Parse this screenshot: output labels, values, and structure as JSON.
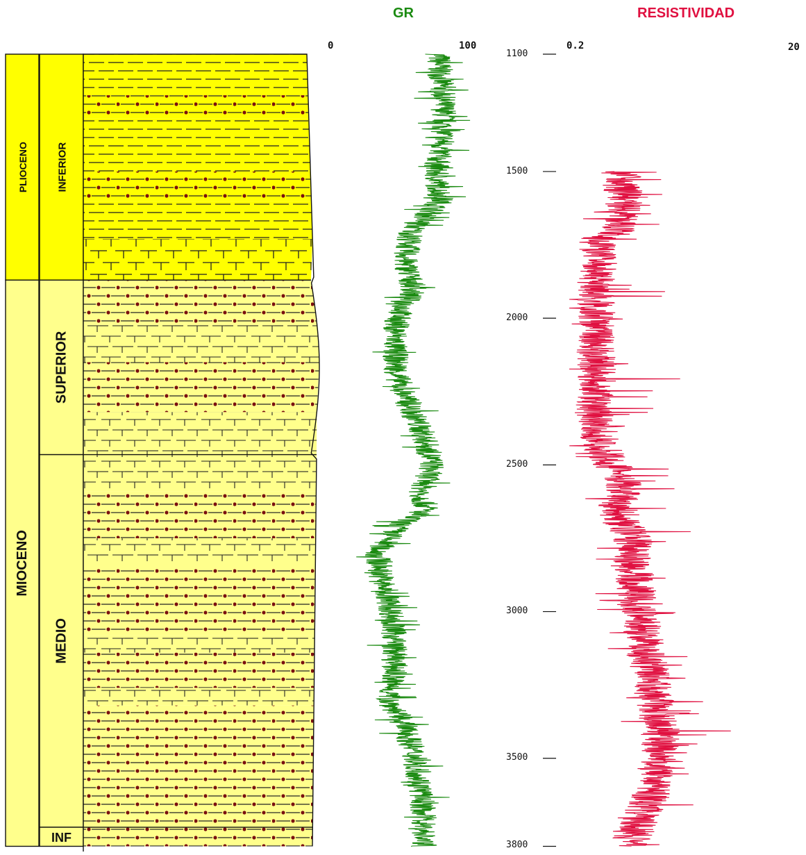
{
  "column": {
    "epochs": [
      {
        "name": "PLIOCENO",
        "top": 1100,
        "base": 1870
      },
      {
        "name": "MIOCENO",
        "top": 1870,
        "base": 3800
      }
    ],
    "subepochs": [
      {
        "name": "INFERIOR",
        "top": 1100,
        "base": 1870
      },
      {
        "name": "SUPERIOR",
        "top": 1870,
        "base": 2465
      },
      {
        "name": "MEDIO",
        "top": 2465,
        "base": 3735
      },
      {
        "name": "INF",
        "top": 3735,
        "base": 3800
      }
    ],
    "lithology": [
      {
        "top": 1100,
        "base": 1240,
        "pattern": "shale"
      },
      {
        "top": 1240,
        "base": 1320,
        "pattern": "sandy-shale"
      },
      {
        "top": 1320,
        "base": 1500,
        "pattern": "shale"
      },
      {
        "top": 1500,
        "base": 1600,
        "pattern": "sandy-shale"
      },
      {
        "top": 1600,
        "base": 1730,
        "pattern": "shale"
      },
      {
        "top": 1730,
        "base": 1870,
        "pattern": "marl"
      },
      {
        "top": 1870,
        "base": 2020,
        "pattern": "sandy-shale"
      },
      {
        "top": 2020,
        "base": 2150,
        "pattern": "marly-shale"
      },
      {
        "top": 2150,
        "base": 2320,
        "pattern": "sandy-shale"
      },
      {
        "top": 2320,
        "base": 2465,
        "pattern": "marly-shale"
      },
      {
        "top": 2465,
        "base": 2590,
        "pattern": "marly-shale"
      },
      {
        "top": 2590,
        "base": 2750,
        "pattern": "sandy-shale"
      },
      {
        "top": 2750,
        "base": 2840,
        "pattern": "marly-shale"
      },
      {
        "top": 2840,
        "base": 3080,
        "pattern": "sandy-shale"
      },
      {
        "top": 3080,
        "base": 3140,
        "pattern": "marly-shale"
      },
      {
        "top": 3140,
        "base": 3260,
        "pattern": "sandy-shale"
      },
      {
        "top": 3260,
        "base": 3320,
        "pattern": "marly-shale"
      },
      {
        "top": 3320,
        "base": 3800,
        "pattern": "sandy-shale"
      }
    ],
    "colors": {
      "lower_column": "#ffff00",
      "upper_column": "#ffff8c",
      "grain_dot": "#7a1010"
    }
  },
  "chart_data": {
    "type": "line",
    "depth_ticks": [
      1100,
      1500,
      2000,
      2500,
      3000,
      3500,
      3800
    ],
    "y_range": [
      1100,
      3800
    ],
    "series": [
      {
        "name": "GR",
        "color": "#1a8a10",
        "scale": "linear",
        "xlim": [
          0,
          100
        ],
        "scale_labels": [
          "0",
          "100"
        ],
        "profile": [
          [
            1100,
            74
          ],
          [
            1200,
            76
          ],
          [
            1300,
            78
          ],
          [
            1400,
            77
          ],
          [
            1500,
            72
          ],
          [
            1600,
            76
          ],
          [
            1700,
            56
          ],
          [
            1800,
            51
          ],
          [
            1900,
            57
          ],
          [
            2000,
            46
          ],
          [
            2100,
            44
          ],
          [
            2200,
            46
          ],
          [
            2300,
            54
          ],
          [
            2400,
            64
          ],
          [
            2500,
            70
          ],
          [
            2550,
            66
          ],
          [
            2600,
            62
          ],
          [
            2650,
            66
          ],
          [
            2700,
            48
          ],
          [
            2730,
            43
          ],
          [
            2800,
            32
          ],
          [
            2900,
            36
          ],
          [
            3000,
            42
          ],
          [
            3100,
            44
          ],
          [
            3200,
            44
          ],
          [
            3300,
            40
          ],
          [
            3400,
            52
          ],
          [
            3500,
            58
          ],
          [
            3600,
            62
          ],
          [
            3700,
            64
          ],
          [
            3800,
            64
          ]
        ],
        "noise": 9
      },
      {
        "name": "RESISTIVIDAD",
        "color": "#e01040",
        "scale": "log",
        "xlim": [
          0.2,
          20
        ],
        "scale_labels": [
          "0.2",
          "20"
        ],
        "profile": [
          [
            1500,
            0.55
          ],
          [
            1550,
            0.58
          ],
          [
            1600,
            0.62
          ],
          [
            1700,
            0.55
          ],
          [
            1730,
            0.35
          ],
          [
            1800,
            0.36
          ],
          [
            1900,
            0.34
          ],
          [
            2000,
            0.35
          ],
          [
            2100,
            0.34
          ],
          [
            2200,
            0.35
          ],
          [
            2300,
            0.33
          ],
          [
            2400,
            0.36
          ],
          [
            2450,
            0.4
          ],
          [
            2500,
            0.48
          ],
          [
            2540,
            0.52
          ],
          [
            2580,
            0.62
          ],
          [
            2640,
            0.52
          ],
          [
            2700,
            0.58
          ],
          [
            2750,
            0.72
          ],
          [
            2800,
            0.7
          ],
          [
            2900,
            0.76
          ],
          [
            3000,
            0.82
          ],
          [
            3100,
            0.9
          ],
          [
            3200,
            1.0
          ],
          [
            3300,
            1.1
          ],
          [
            3400,
            1.25
          ],
          [
            3500,
            1.2
          ],
          [
            3600,
            1.1
          ],
          [
            3700,
            0.85
          ],
          [
            3800,
            0.65
          ]
        ],
        "noise": 0.18
      }
    ]
  },
  "labels": {
    "gr_title": "GR",
    "res_title": "RESISTIVIDAD",
    "gr_min": "0",
    "gr_max": "100",
    "res_min": "0.2",
    "res_max": "20",
    "depth_1100": "1100",
    "depth_1500": "1500",
    "depth_2000": "2000",
    "depth_2500": "2500",
    "depth_3000": "3000",
    "depth_3500": "3500",
    "depth_3800": "3800"
  }
}
